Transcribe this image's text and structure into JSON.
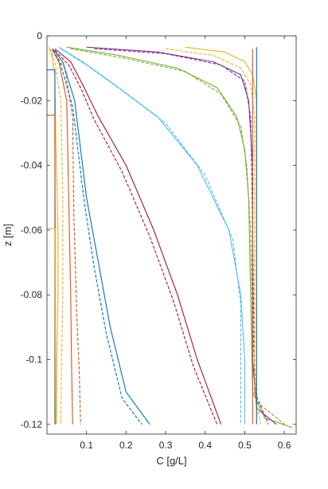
{
  "chart_data": {
    "type": "line",
    "xlabel": "C [g/L]",
    "ylabel": "z [m]",
    "xlim": [
      0,
      0.63
    ],
    "ylim": [
      -0.123,
      0
    ],
    "xticks": [
      0.1,
      0.2,
      0.3,
      0.4,
      0.5,
      0.6
    ],
    "xtick_labels": [
      "0.1",
      "0.2",
      "0.3",
      "0.4",
      "0.5",
      "0.6"
    ],
    "yticks": [
      0,
      -0.02,
      -0.04,
      -0.06,
      -0.08,
      -0.1,
      -0.12
    ],
    "ytick_labels": [
      "0",
      "-0.02",
      "-0.04",
      "-0.06",
      "-0.08",
      "-0.1",
      "-0.12"
    ],
    "grid": false,
    "legend": "none",
    "series": [
      {
        "color": "#EDB120",
        "style": "solid",
        "points": [
          [
            0.005,
            -0.0035
          ],
          [
            0.012,
            -0.006
          ],
          [
            0.02,
            -0.012
          ],
          [
            0.022,
            -0.03
          ],
          [
            0.028,
            -0.06
          ],
          [
            0.028,
            -0.08
          ],
          [
            0.025,
            -0.1
          ],
          [
            0.024,
            -0.12
          ]
        ]
      },
      {
        "color": "#EDB120",
        "style": "dashed",
        "points": [
          [
            0.008,
            -0.004
          ],
          [
            0.02,
            -0.008
          ],
          [
            0.035,
            -0.02
          ],
          [
            0.04,
            -0.05
          ],
          [
            0.04,
            -0.08
          ],
          [
            0.037,
            -0.1
          ],
          [
            0.035,
            -0.12
          ]
        ]
      },
      {
        "color": "#D95319",
        "style": "solid",
        "points": [
          [
            0.012,
            -0.004
          ],
          [
            0.03,
            -0.008
          ],
          [
            0.05,
            -0.02
          ],
          [
            0.055,
            -0.05
          ],
          [
            0.06,
            -0.08
          ],
          [
            0.062,
            -0.1
          ],
          [
            0.065,
            -0.12
          ]
        ]
      },
      {
        "color": "#D95319",
        "style": "dashed",
        "points": [
          [
            0.015,
            -0.0045
          ],
          [
            0.045,
            -0.01
          ],
          [
            0.065,
            -0.025
          ],
          [
            0.068,
            -0.055
          ],
          [
            0.075,
            -0.085
          ],
          [
            0.082,
            -0.105
          ],
          [
            0.085,
            -0.12
          ]
        ]
      },
      {
        "color": "#A2142F",
        "style": "solid",
        "points": [
          [
            0.02,
            -0.004
          ],
          [
            0.06,
            -0.008
          ],
          [
            0.09,
            -0.015
          ],
          [
            0.13,
            -0.025
          ],
          [
            0.2,
            -0.04
          ],
          [
            0.27,
            -0.06
          ],
          [
            0.33,
            -0.08
          ],
          [
            0.38,
            -0.1
          ],
          [
            0.44,
            -0.12
          ]
        ]
      },
      {
        "color": "#A2142F",
        "style": "dashed",
        "points": [
          [
            0.02,
            -0.0045
          ],
          [
            0.055,
            -0.009
          ],
          [
            0.085,
            -0.016
          ],
          [
            0.12,
            -0.026
          ],
          [
            0.19,
            -0.042
          ],
          [
            0.26,
            -0.062
          ],
          [
            0.32,
            -0.082
          ],
          [
            0.37,
            -0.102
          ],
          [
            0.43,
            -0.12
          ]
        ]
      },
      {
        "color": "#0072BD",
        "style": "solid",
        "points": [
          [
            0.015,
            -0.004
          ],
          [
            0.04,
            -0.008
          ],
          [
            0.07,
            -0.02
          ],
          [
            0.1,
            -0.05
          ],
          [
            0.13,
            -0.07
          ],
          [
            0.16,
            -0.09
          ],
          [
            0.2,
            -0.11
          ],
          [
            0.26,
            -0.12
          ]
        ]
      },
      {
        "color": "#0072BD",
        "style": "dashed",
        "points": [
          [
            0.015,
            -0.0045
          ],
          [
            0.035,
            -0.009
          ],
          [
            0.065,
            -0.022
          ],
          [
            0.095,
            -0.052
          ],
          [
            0.12,
            -0.072
          ],
          [
            0.15,
            -0.092
          ],
          [
            0.19,
            -0.112
          ],
          [
            0.24,
            -0.12
          ]
        ]
      },
      {
        "color": "#4DBEEE",
        "style": "solid",
        "points": [
          [
            0.03,
            -0.0035
          ],
          [
            0.09,
            -0.008
          ],
          [
            0.17,
            -0.015
          ],
          [
            0.28,
            -0.025
          ],
          [
            0.38,
            -0.04
          ],
          [
            0.46,
            -0.06
          ],
          [
            0.49,
            -0.08
          ],
          [
            0.5,
            -0.1
          ],
          [
            0.5,
            -0.12
          ]
        ]
      },
      {
        "color": "#4DBEEE",
        "style": "dashed",
        "points": [
          [
            0.035,
            -0.004
          ],
          [
            0.1,
            -0.009
          ],
          [
            0.18,
            -0.016
          ],
          [
            0.3,
            -0.027
          ],
          [
            0.4,
            -0.043
          ],
          [
            0.47,
            -0.063
          ],
          [
            0.49,
            -0.083
          ],
          [
            0.49,
            -0.12
          ]
        ]
      },
      {
        "color": "#77AC30",
        "style": "solid",
        "points": [
          [
            0.05,
            -0.0035
          ],
          [
            0.18,
            -0.006
          ],
          [
            0.33,
            -0.01
          ],
          [
            0.43,
            -0.016
          ],
          [
            0.48,
            -0.025
          ],
          [
            0.5,
            -0.035
          ],
          [
            0.51,
            -0.05
          ],
          [
            0.515,
            -0.08
          ],
          [
            0.52,
            -0.11
          ],
          [
            0.55,
            -0.118
          ],
          [
            0.62,
            -0.121
          ]
        ]
      },
      {
        "color": "#77AC30",
        "style": "dashed",
        "points": [
          [
            0.06,
            -0.004
          ],
          [
            0.2,
            -0.007
          ],
          [
            0.35,
            -0.011
          ],
          [
            0.44,
            -0.018
          ],
          [
            0.49,
            -0.028
          ],
          [
            0.505,
            -0.04
          ],
          [
            0.515,
            -0.06
          ],
          [
            0.52,
            -0.09
          ],
          [
            0.53,
            -0.113
          ],
          [
            0.6,
            -0.12
          ]
        ]
      },
      {
        "color": "#7E2F8E",
        "style": "solid",
        "points": [
          [
            0.1,
            -0.0035
          ],
          [
            0.28,
            -0.005
          ],
          [
            0.42,
            -0.008
          ],
          [
            0.49,
            -0.012
          ],
          [
            0.51,
            -0.02
          ],
          [
            0.52,
            -0.04
          ],
          [
            0.52,
            -0.1
          ],
          [
            0.53,
            -0.115
          ],
          [
            0.58,
            -0.12
          ]
        ]
      },
      {
        "color": "#7E2F8E",
        "style": "dashed",
        "points": [
          [
            0.12,
            -0.004
          ],
          [
            0.3,
            -0.0055
          ],
          [
            0.44,
            -0.009
          ],
          [
            0.5,
            -0.014
          ],
          [
            0.515,
            -0.025
          ],
          [
            0.52,
            -0.06
          ],
          [
            0.525,
            -0.11
          ],
          [
            0.56,
            -0.12
          ]
        ]
      },
      {
        "color": "#EDB120",
        "style": "solid",
        "points": [
          [
            0.35,
            -0.0035
          ],
          [
            0.45,
            -0.005
          ],
          [
            0.5,
            -0.008
          ],
          [
            0.52,
            -0.012
          ],
          [
            0.53,
            -0.02
          ],
          [
            0.53,
            -0.1
          ],
          [
            0.53,
            -0.12
          ]
        ]
      },
      {
        "color": "#EDB120",
        "style": "dashed",
        "points": [
          [
            0.3,
            -0.004
          ],
          [
            0.42,
            -0.006
          ],
          [
            0.49,
            -0.01
          ],
          [
            0.515,
            -0.015
          ],
          [
            0.525,
            -0.025
          ],
          [
            0.525,
            -0.11
          ],
          [
            0.54,
            -0.12
          ]
        ]
      },
      {
        "color": "#0072BD",
        "style": "solid",
        "points": [
          [
            0.53,
            -0.0035
          ],
          [
            0.53,
            -0.12
          ]
        ]
      },
      {
        "color": "#D95319",
        "style": "solid",
        "points": [
          [
            0.52,
            -0.004
          ],
          [
            0.52,
            -0.12
          ]
        ]
      },
      {
        "color": "#0072BD",
        "style": "solid",
        "points": [
          [
            0.0,
            -0.0105
          ],
          [
            0.02,
            -0.0105
          ],
          [
            0.02,
            -0.12
          ]
        ]
      },
      {
        "color": "#D95319",
        "style": "solid",
        "points": [
          [
            0.0,
            -0.0245
          ],
          [
            0.02,
            -0.0245
          ],
          [
            0.022,
            -0.12
          ]
        ]
      },
      {
        "color": "#EDB120",
        "style": "solid",
        "points": [
          [
            0.0,
            -0.0595
          ],
          [
            0.02,
            -0.0595
          ],
          [
            0.022,
            -0.12
          ]
        ]
      }
    ]
  }
}
